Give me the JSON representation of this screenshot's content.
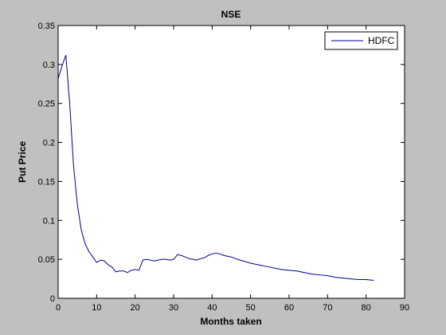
{
  "chart_data": {
    "type": "line",
    "title": "NSE",
    "xlabel": "Months taken",
    "ylabel": "Put Price",
    "xlim": [
      0,
      90
    ],
    "ylim": [
      0,
      0.35
    ],
    "xticks": [
      0,
      10,
      20,
      30,
      40,
      50,
      60,
      70,
      80,
      90
    ],
    "yticks": [
      0,
      0.05,
      0.1,
      0.15,
      0.2,
      0.25,
      0.3,
      0.35
    ],
    "ytick_labels": [
      "0",
      "0.05",
      "0.1",
      "0.15",
      "0.2",
      "0.25",
      "0.3",
      "0.35"
    ],
    "grid": false,
    "legend": "top-right",
    "line_color": "#00008b",
    "series": [
      {
        "name": "HDFC",
        "x": [
          0,
          1,
          2,
          3,
          4,
          5,
          6,
          7,
          8,
          9,
          10,
          11,
          12,
          13,
          14,
          15,
          16,
          17,
          18,
          19,
          20,
          21,
          22,
          23,
          24,
          25,
          26,
          27,
          28,
          29,
          30,
          31,
          32,
          33,
          34,
          35,
          36,
          37,
          38,
          39,
          40,
          41,
          42,
          43,
          44,
          45,
          46,
          48,
          50,
          52,
          54,
          56,
          58,
          60,
          62,
          64,
          66,
          68,
          70,
          72,
          74,
          76,
          78,
          80,
          82
        ],
        "y": [
          0.282,
          0.298,
          0.312,
          0.25,
          0.17,
          0.12,
          0.088,
          0.07,
          0.06,
          0.053,
          0.046,
          0.049,
          0.048,
          0.043,
          0.04,
          0.034,
          0.035,
          0.035,
          0.033,
          0.036,
          0.037,
          0.036,
          0.049,
          0.05,
          0.049,
          0.048,
          0.049,
          0.05,
          0.05,
          0.049,
          0.05,
          0.056,
          0.055,
          0.053,
          0.051,
          0.05,
          0.049,
          0.051,
          0.052,
          0.055,
          0.057,
          0.058,
          0.057,
          0.055,
          0.054,
          0.053,
          0.051,
          0.048,
          0.045,
          0.043,
          0.041,
          0.039,
          0.037,
          0.036,
          0.035,
          0.033,
          0.031,
          0.03,
          0.029,
          0.027,
          0.026,
          0.025,
          0.024,
          0.024,
          0.023
        ]
      }
    ]
  }
}
